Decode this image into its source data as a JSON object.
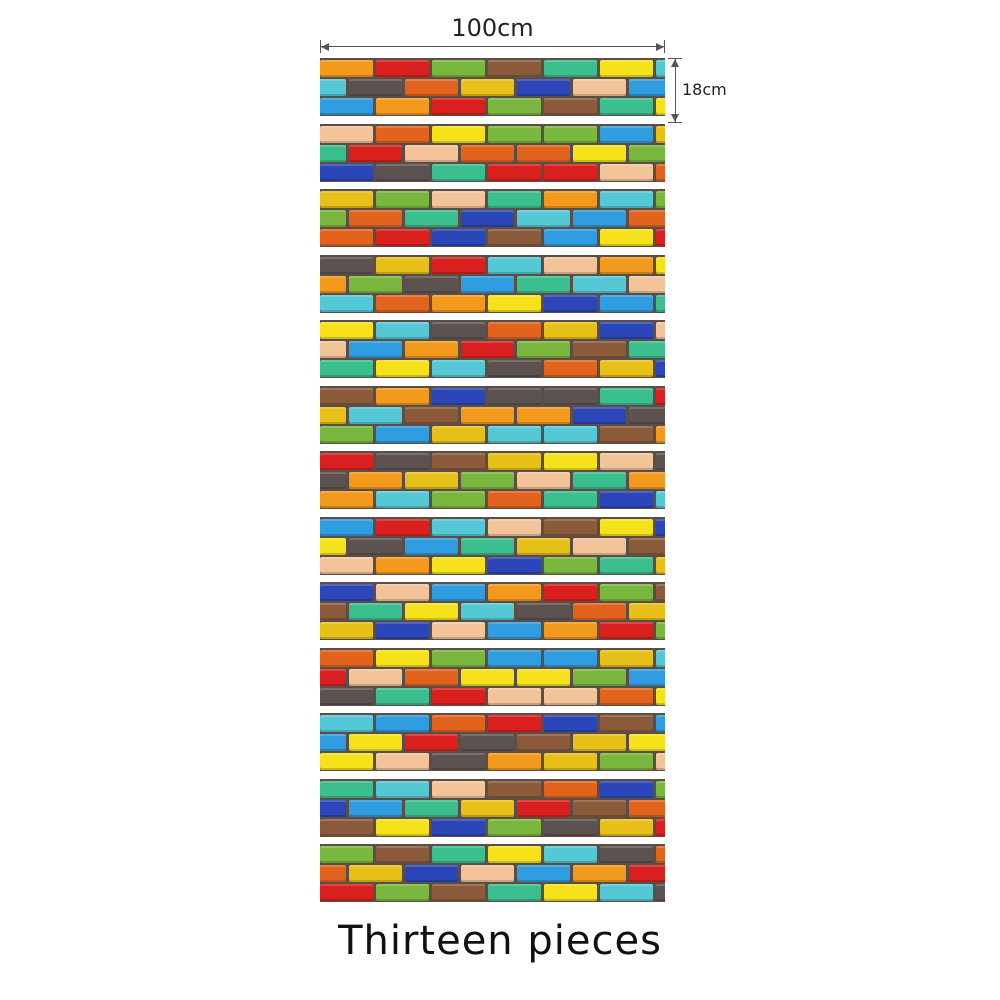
{
  "dimensions": {
    "width_label": "100cm",
    "height_label": "18cm"
  },
  "caption": "Thirteen  pieces",
  "sticker": {
    "piece_count": 13,
    "brick_colors": [
      "#f39a1c",
      "#e8c01a",
      "#f6e21a",
      "#d9201f",
      "#2a46b8",
      "#55c8d6",
      "#7ab73f",
      "#f3c49a",
      "#5c5250",
      "#8a5a3a",
      "#2f9de0",
      "#e2631e",
      "#3bbf8f"
    ]
  }
}
